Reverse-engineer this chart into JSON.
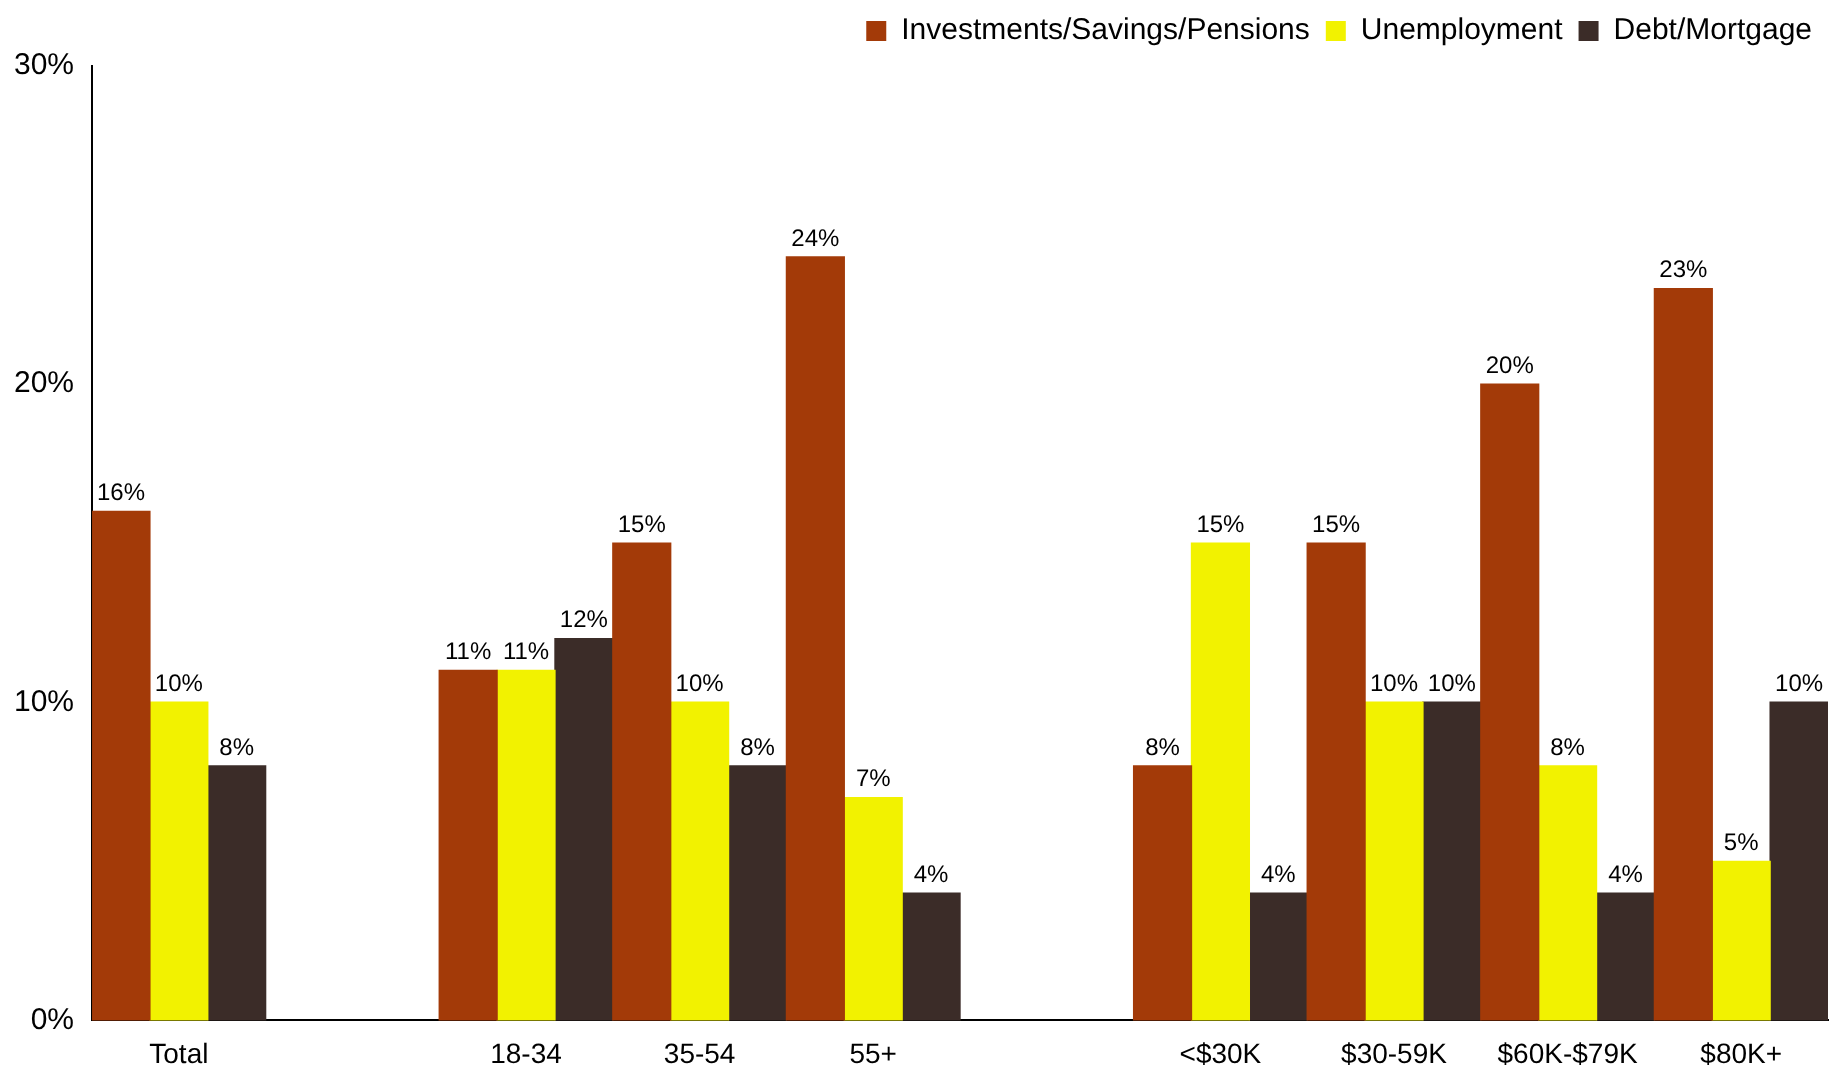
{
  "chart_data": {
    "type": "bar",
    "categories": [
      "Total",
      null,
      "18-34",
      "35-54",
      "55+",
      null,
      "<$30K",
      "$30-59K",
      "$60K-$79K",
      "$80K+"
    ],
    "series": [
      {
        "name": "Investments/Savings/Pensions",
        "color": "#a33a08",
        "values": [
          16,
          null,
          11,
          15,
          24,
          null,
          8,
          15,
          20,
          23
        ],
        "value_labels": [
          "16%",
          null,
          "11%",
          "15%",
          "24%",
          null,
          "8%",
          "15%",
          "20%",
          "23%"
        ]
      },
      {
        "name": "Unemployment",
        "color": "#f2f200",
        "values": [
          10,
          null,
          11,
          10,
          7,
          null,
          15,
          10,
          8,
          5
        ],
        "value_labels": [
          "10%",
          null,
          "11%",
          "10%",
          "7%",
          null,
          "15%",
          "10%",
          "8%",
          "5%"
        ]
      },
      {
        "name": "Debt/Mortgage",
        "color": "#3b2c28",
        "values": [
          8,
          null,
          12,
          8,
          4,
          null,
          4,
          10,
          4,
          10
        ],
        "value_labels": [
          "8%",
          null,
          "12%",
          "8%",
          "4%",
          null,
          "4%",
          "10%",
          "4%",
          "10%"
        ]
      }
    ],
    "ylim": [
      0,
      30
    ],
    "yticks": [
      {
        "value": 0,
        "label": "0%"
      },
      {
        "value": 10,
        "label": "10%"
      },
      {
        "value": 20,
        "label": "20%"
      },
      {
        "value": 30,
        "label": "30%"
      }
    ],
    "grid": false,
    "legend": "top right"
  }
}
